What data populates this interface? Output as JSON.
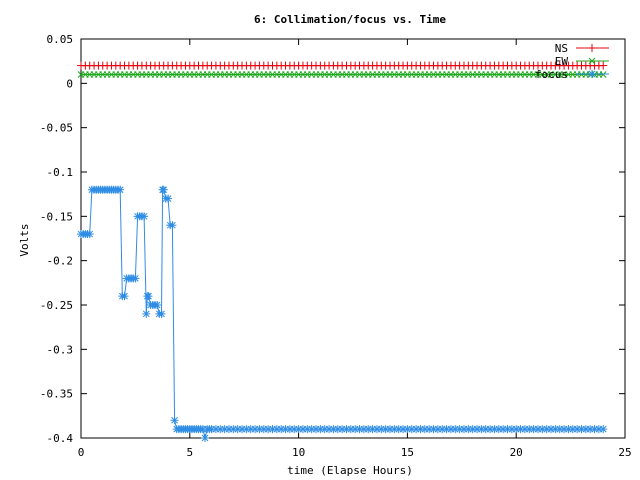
{
  "chart_data": {
    "type": "line",
    "title": "6: Collimation/focus vs. Time",
    "xlabel": "time (Elapse Hours)",
    "ylabel": "Volts",
    "xlim": [
      0,
      25
    ],
    "ylim": [
      -0.4,
      0.05
    ],
    "xticks": [
      0,
      5,
      10,
      15,
      20,
      25
    ],
    "yticks": [
      -0.4,
      -0.35,
      -0.3,
      -0.25,
      -0.2,
      -0.15,
      -0.1,
      -0.05,
      0,
      0.05
    ],
    "ytick_labels": [
      "-0.4",
      "-0.35",
      "-0.3",
      "-0.25",
      "-0.2",
      "-0.15",
      "-0.1",
      "-0.05",
      "0",
      "0.05"
    ],
    "grid": false,
    "legend_position": "top-right",
    "series": [
      {
        "name": "NS",
        "color": "#e8000b",
        "marker": "plus",
        "x_start": 0.0,
        "x_end": 24.0,
        "x_step": 0.2,
        "constant_value": 0.02
      },
      {
        "name": "EW",
        "color": "#1ea81e",
        "marker": "cross",
        "x_start": 0.0,
        "x_end": 24.0,
        "x_step": 0.2,
        "constant_value": 0.01
      },
      {
        "name": "focus",
        "color": "#2f8de4",
        "marker": "star",
        "points": [
          [
            0.0,
            -0.17
          ],
          [
            0.1,
            -0.17
          ],
          [
            0.2,
            -0.17
          ],
          [
            0.3,
            -0.17
          ],
          [
            0.4,
            -0.17
          ],
          [
            0.5,
            -0.12
          ],
          [
            0.6,
            -0.12
          ],
          [
            0.7,
            -0.12
          ],
          [
            0.8,
            -0.12
          ],
          [
            0.9,
            -0.12
          ],
          [
            1.0,
            -0.12
          ],
          [
            1.1,
            -0.12
          ],
          [
            1.2,
            -0.12
          ],
          [
            1.3,
            -0.12
          ],
          [
            1.4,
            -0.12
          ],
          [
            1.5,
            -0.12
          ],
          [
            1.6,
            -0.12
          ],
          [
            1.7,
            -0.12
          ],
          [
            1.8,
            -0.12
          ],
          [
            1.9,
            -0.24
          ],
          [
            2.0,
            -0.24
          ],
          [
            2.1,
            -0.22
          ],
          [
            2.2,
            -0.22
          ],
          [
            2.3,
            -0.22
          ],
          [
            2.4,
            -0.22
          ],
          [
            2.5,
            -0.22
          ],
          [
            2.6,
            -0.15
          ],
          [
            2.7,
            -0.15
          ],
          [
            2.8,
            -0.15
          ],
          [
            2.9,
            -0.15
          ],
          [
            3.0,
            -0.26
          ],
          [
            3.05,
            -0.24
          ],
          [
            3.1,
            -0.24
          ],
          [
            3.2,
            -0.25
          ],
          [
            3.3,
            -0.25
          ],
          [
            3.4,
            -0.25
          ],
          [
            3.5,
            -0.25
          ],
          [
            3.6,
            -0.26
          ],
          [
            3.7,
            -0.26
          ],
          [
            3.75,
            -0.12
          ],
          [
            3.8,
            -0.12
          ],
          [
            3.9,
            -0.13
          ],
          [
            4.0,
            -0.13
          ],
          [
            4.1,
            -0.16
          ],
          [
            4.2,
            -0.16
          ],
          [
            4.3,
            -0.38
          ],
          [
            4.4,
            -0.39
          ],
          [
            4.5,
            -0.39
          ],
          [
            4.6,
            -0.39
          ],
          [
            4.7,
            -0.39
          ],
          [
            4.8,
            -0.39
          ],
          [
            4.9,
            -0.39
          ],
          [
            5.0,
            -0.39
          ],
          [
            5.1,
            -0.39
          ],
          [
            5.2,
            -0.39
          ],
          [
            5.3,
            -0.39
          ],
          [
            5.4,
            -0.39
          ],
          [
            5.5,
            -0.39
          ],
          [
            5.6,
            -0.39
          ],
          [
            5.7,
            -0.4
          ],
          [
            5.8,
            -0.39
          ],
          [
            5.9,
            -0.39
          ],
          [
            6.0,
            -0.39
          ]
        ],
        "continue_value": -0.39,
        "continue_to": 24.0,
        "continue_step": 0.2
      }
    ]
  }
}
